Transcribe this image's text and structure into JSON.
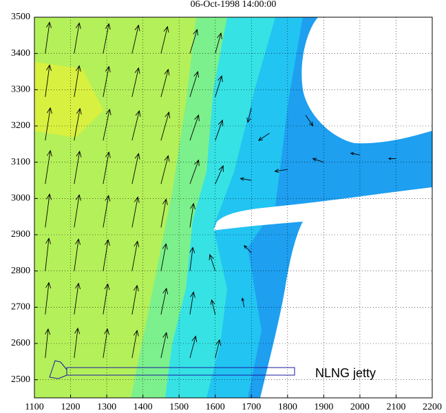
{
  "chart_data": {
    "type": "quiver",
    "title": "06-Oct-1998 14:00:00",
    "annotation": "NLNG jetty",
    "xlim": [
      1100,
      2200
    ],
    "ylim": [
      2450,
      3500
    ],
    "xticks": [
      1100,
      1200,
      1300,
      1400,
      1500,
      1600,
      1700,
      1800,
      1900,
      2000,
      2100,
      2200
    ],
    "yticks": [
      2500,
      2600,
      2700,
      2800,
      2900,
      3000,
      3100,
      3200,
      3300,
      3400,
      3500
    ],
    "grid": true,
    "color": "#000000",
    "x": [
      1130,
      1210,
      1290,
      1370,
      1450,
      1530,
      1600,
      1130,
      1210,
      1290,
      1370,
      1450,
      1530,
      1600,
      1130,
      1210,
      1290,
      1370,
      1450,
      1530,
      1600,
      1130,
      1210,
      1290,
      1370,
      1450,
      1530,
      1130,
      1210,
      1290,
      1370,
      1450,
      1530,
      1600,
      1130,
      1210,
      1290,
      1370,
      1450,
      1530,
      1600,
      1130,
      1210,
      1290,
      1370,
      1450,
      1530,
      1600,
      1130,
      1210,
      1290,
      1370,
      1450,
      1530,
      1600,
      1700,
      1800,
      1900,
      2000,
      2100,
      1750,
      1850,
      1700,
      1700,
      1680
    ],
    "y": [
      2560,
      2560,
      2560,
      2560,
      2560,
      2560,
      2560,
      2680,
      2680,
      2680,
      2680,
      2680,
      2680,
      2680,
      2800,
      2800,
      2800,
      2800,
      2800,
      2800,
      2800,
      2920,
      2920,
      2920,
      2920,
      2920,
      2920,
      3040,
      3040,
      3040,
      3040,
      3040,
      3040,
      3040,
      3160,
      3160,
      3160,
      3160,
      3160,
      3160,
      3160,
      3280,
      3280,
      3280,
      3280,
      3280,
      3280,
      3280,
      3400,
      3400,
      3400,
      3400,
      3400,
      3400,
      3400,
      3050,
      3080,
      3100,
      3120,
      3110,
      3180,
      3230,
      3250,
      2850,
      2700
    ],
    "u": [
      8,
      10,
      12,
      14,
      15,
      16,
      12,
      10,
      12,
      13,
      14,
      15,
      10,
      -10,
      10,
      12,
      14,
      15,
      14,
      8,
      -15,
      12,
      14,
      15,
      16,
      14,
      10,
      14,
      15,
      16,
      18,
      20,
      24,
      22,
      14,
      16,
      18,
      20,
      22,
      24,
      20,
      12,
      14,
      16,
      18,
      20,
      22,
      18,
      12,
      14,
      16,
      18,
      18,
      20,
      16,
      -30,
      -35,
      -30,
      -25,
      -20,
      -30,
      20,
      -10,
      -20,
      -5
    ],
    "v": [
      80,
      82,
      80,
      76,
      70,
      60,
      50,
      88,
      86,
      84,
      80,
      72,
      62,
      40,
      90,
      88,
      86,
      82,
      75,
      65,
      45,
      92,
      90,
      88,
      84,
      78,
      66,
      92,
      90,
      88,
      84,
      78,
      66,
      50,
      90,
      88,
      86,
      82,
      78,
      70,
      56,
      88,
      86,
      84,
      80,
      76,
      70,
      58,
      86,
      84,
      82,
      78,
      74,
      66,
      56,
      5,
      -5,
      10,
      5,
      0,
      -20,
      -30,
      -40,
      20,
      25
    ]
  }
}
